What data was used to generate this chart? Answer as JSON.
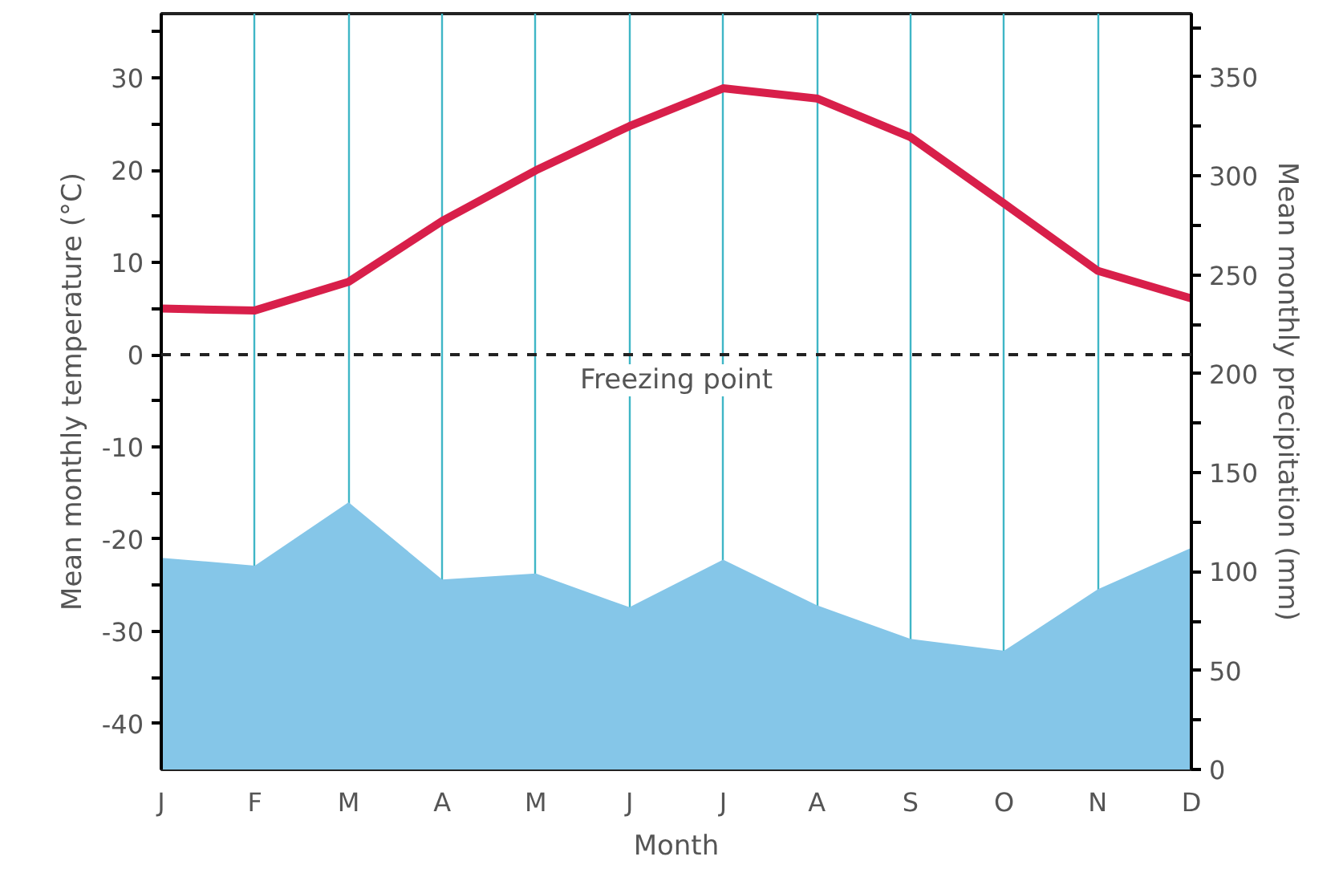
{
  "chart_data": {
    "type": "line",
    "xlabel": "Month",
    "ylabel": "Mean monthly temperature (°C)",
    "y2label": "Mean monthly precipitation (mm)",
    "categories": [
      "J",
      "F",
      "M",
      "A",
      "M",
      "J",
      "J",
      "A",
      "S",
      "O",
      "N",
      "D"
    ],
    "series": [
      {
        "type": "area",
        "axis": "y2",
        "color": "#85c6e8",
        "values": [
          107,
          103,
          135,
          96,
          99,
          82,
          106,
          83,
          66,
          60,
          91,
          112
        ]
      },
      {
        "color": "#d81f4a",
        "values": [
          5,
          4.8,
          7.9,
          14.5,
          20,
          24.8,
          28.9,
          27.8,
          23.6,
          16.4,
          9.1,
          6.1
        ]
      }
    ],
    "ylim": [
      -45,
      37
    ],
    "yticks": [
      -40,
      {
        "value": -35,
        "label": null
      },
      -30,
      {
        "value": -25,
        "label": null
      },
      -20,
      {
        "value": -15,
        "label": null
      },
      -10,
      {
        "value": -5,
        "label": null
      },
      0,
      {
        "value": 5,
        "label": null
      },
      10,
      {
        "value": 15,
        "label": null
      },
      20,
      {
        "value": 25,
        "label": null
      },
      30,
      {
        "value": 35,
        "label": null
      }
    ],
    "y2lim": [
      0,
      382
    ],
    "y2ticks": [
      0,
      {
        "value": 25,
        "label": null
      },
      50,
      {
        "value": 75,
        "label": null
      },
      100,
      {
        "value": 125,
        "label": null
      },
      150,
      {
        "value": 175,
        "label": null
      },
      200,
      {
        "value": 225,
        "label": null
      },
      250,
      {
        "value": 275,
        "label": null
      },
      300,
      {
        "value": 325,
        "label": null
      },
      350,
      {
        "value": 375,
        "label": null
      }
    ],
    "ref_lines": [
      {
        "axis": "y",
        "value": 0,
        "label": "Freezing point",
        "color": "#222222",
        "line_style": "dashed"
      }
    ],
    "grid": "x",
    "marker": "none",
    "line_style": "solid"
  }
}
